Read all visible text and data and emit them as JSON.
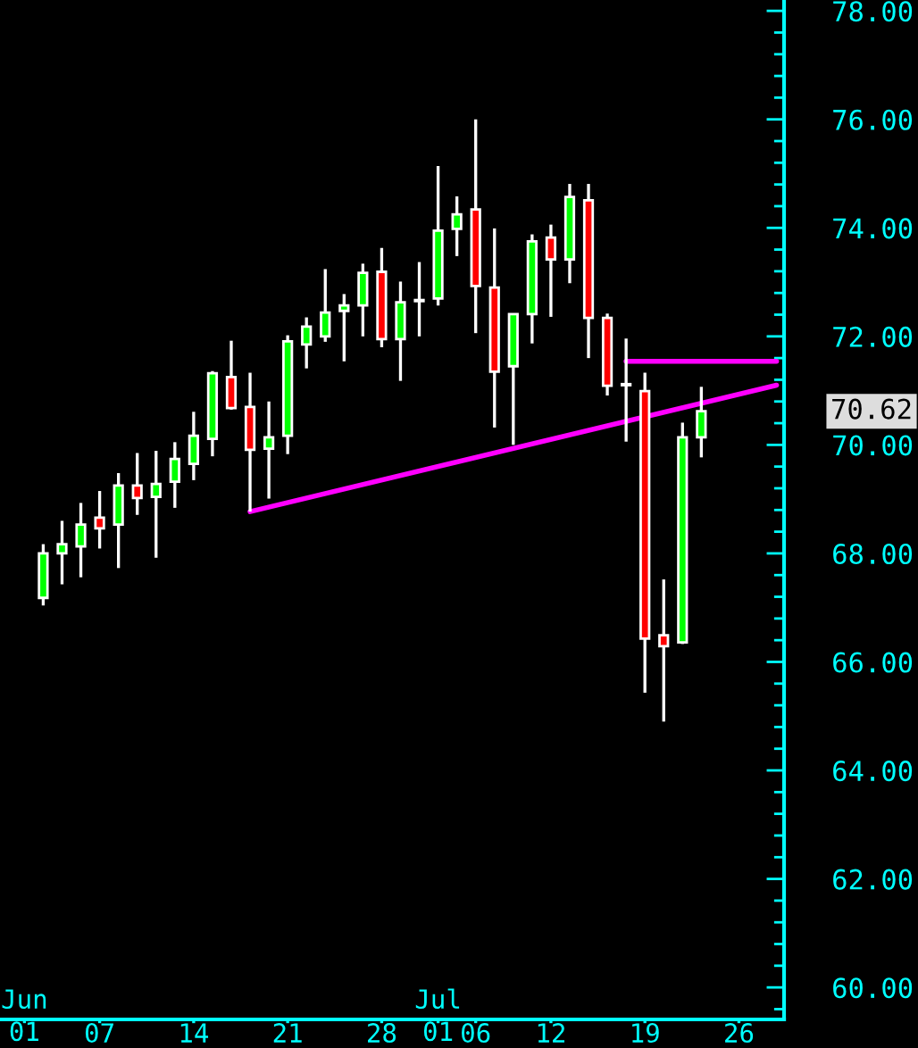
{
  "chart_data": {
    "type": "candlestick",
    "categories": [
      "Jun\n01",
      null,
      null,
      null,
      "07",
      null,
      null,
      null,
      null,
      "14",
      null,
      null,
      null,
      null,
      "21",
      null,
      null,
      null,
      null,
      "28",
      null,
      null,
      "Jul\n01",
      null,
      "06",
      null,
      null,
      null,
      "12",
      null,
      null,
      null,
      null,
      "19",
      null,
      null,
      null,
      null,
      "26",
      null,
      null
    ],
    "ohlc": [
      null,
      [
        67.18,
        68.17,
        67.04,
        68.0
      ],
      [
        68.0,
        68.6,
        67.43,
        68.17
      ],
      [
        68.13,
        68.93,
        67.56,
        68.53
      ],
      [
        68.66,
        69.15,
        68.09,
        68.46
      ],
      [
        68.53,
        69.48,
        67.73,
        69.25
      ],
      [
        69.25,
        69.85,
        68.71,
        69.02
      ],
      [
        69.04,
        69.89,
        67.92,
        69.28
      ],
      [
        69.32,
        70.05,
        68.84,
        69.74
      ],
      [
        69.65,
        70.61,
        69.35,
        70.17
      ],
      [
        70.11,
        71.36,
        69.79,
        71.32
      ],
      [
        71.25,
        71.92,
        70.65,
        70.68
      ],
      [
        70.7,
        71.33,
        68.77,
        69.91
      ],
      [
        69.93,
        70.8,
        69.01,
        70.14
      ],
      [
        70.17,
        72.02,
        69.83,
        71.91
      ],
      [
        71.85,
        72.35,
        71.41,
        72.18
      ],
      [
        72.0,
        73.24,
        71.9,
        72.44
      ],
      [
        72.47,
        72.78,
        71.54,
        72.57
      ],
      [
        72.57,
        73.34,
        72.0,
        73.17
      ],
      [
        73.19,
        73.63,
        71.8,
        71.95
      ],
      [
        71.95,
        73.01,
        71.18,
        72.63
      ],
      [
        72.67,
        73.37,
        72.0,
        72.65
      ],
      [
        72.7,
        75.14,
        72.57,
        73.95
      ],
      [
        73.98,
        74.58,
        73.48,
        74.25
      ],
      [
        74.34,
        76.0,
        72.06,
        72.93
      ],
      [
        72.9,
        73.99,
        70.32,
        71.35
      ],
      [
        71.45,
        72.41,
        70.0,
        72.41
      ],
      [
        72.41,
        73.88,
        71.87,
        73.75
      ],
      [
        73.82,
        74.06,
        72.36,
        73.42
      ],
      [
        73.42,
        74.81,
        72.98,
        74.57
      ],
      [
        74.51,
        74.81,
        71.6,
        72.34
      ],
      [
        72.34,
        72.42,
        70.91,
        71.09
      ],
      [
        71.12,
        71.96,
        70.06,
        71.1
      ],
      [
        70.99,
        71.33,
        65.43,
        66.43
      ],
      [
        66.49,
        67.52,
        64.9,
        66.29
      ],
      [
        66.36,
        70.41,
        66.33,
        70.14
      ],
      [
        70.14,
        71.07,
        69.77,
        70.62
      ],
      null,
      null,
      null,
      null
    ],
    "colors": [
      null,
      "#00ff00",
      "#00ff00",
      "#00ff00",
      "#ff0000",
      "#00ff00",
      "#ff0000",
      "#00ff00",
      "#00ff00",
      "#00ff00",
      "#00ff00",
      "#ff0000",
      "#ff0000",
      "#00ff00",
      "#00ff00",
      "#00ff00",
      "#00ff00",
      "#00ff00",
      "#00ff00",
      "#ff0000",
      "#00ff00",
      "#ff0000",
      "#00ff00",
      "#00ff00",
      "#ff0000",
      "#ff0000",
      "#00ff00",
      "#00ff00",
      "#ff0000",
      "#00ff00",
      "#ff0000",
      "#ff0000",
      "#ff0000",
      "#ff0000",
      "#ff0000",
      "#00ff00",
      "#00ff00",
      null,
      null,
      null,
      null
    ],
    "series": [
      {
        "type": "line",
        "values": [
          null,
          null,
          null,
          null,
          null,
          null,
          null,
          null,
          null,
          null,
          null,
          null,
          68.77,
          null,
          null,
          null,
          null,
          null,
          null,
          null,
          null,
          null,
          null,
          null,
          null,
          null,
          null,
          null,
          null,
          null,
          null,
          null,
          null,
          null,
          null,
          null,
          null,
          null,
          null,
          null,
          71.1
        ],
        "color": "#ff00ff"
      },
      {
        "type": "line",
        "values": [
          null,
          null,
          null,
          null,
          null,
          null,
          null,
          null,
          null,
          null,
          null,
          null,
          null,
          null,
          null,
          null,
          null,
          null,
          null,
          null,
          null,
          null,
          null,
          null,
          null,
          null,
          null,
          null,
          null,
          null,
          null,
          null,
          71.54,
          null,
          null,
          null,
          null,
          null,
          null,
          null,
          71.54
        ],
        "color": "#ff00ff"
      }
    ],
    "ylim": [
      59.41,
      78.2
    ],
    "yticks": [
      {
        "value": 60,
        "label": "60.00"
      },
      {
        "value": 62,
        "label": "62.00"
      },
      {
        "value": 64,
        "label": "64.00"
      },
      {
        "value": 66,
        "label": "66.00"
      },
      {
        "value": 68,
        "label": "68.00"
      },
      {
        "value": 70,
        "label": "70.00"
      },
      {
        "value": 72,
        "label": "72.00"
      },
      {
        "value": 74,
        "label": "74.00"
      },
      {
        "value": 76,
        "label": "76.00"
      },
      {
        "value": 78,
        "label": "78.00"
      }
    ],
    "annotations": [
      "70.62"
    ],
    "grid": false,
    "legend": false
  }
}
